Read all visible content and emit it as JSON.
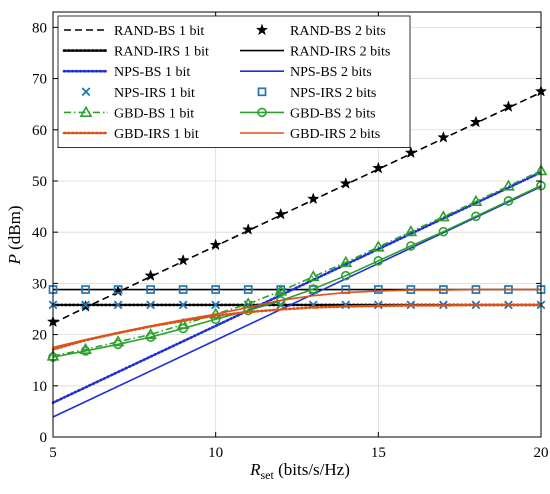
{
  "chart_data": {
    "type": "line",
    "title": "",
    "xlabel_main": "R",
    "xlabel_sub": "set",
    "xlabel_unit": " (bits/s/Hz)",
    "ylabel_main": "P",
    "ylabel_unit": " (dBm)",
    "xlim": [
      5,
      20
    ],
    "ylim": [
      0,
      83
    ],
    "xticks": [
      5,
      10,
      15,
      20
    ],
    "yticks": [
      0,
      10,
      20,
      30,
      40,
      50,
      60,
      70,
      80
    ],
    "grid": true,
    "legend_position": "top-left",
    "legend_columns": 2,
    "series": [
      {
        "name": "RAND-BS 1 bit",
        "color": "#000000",
        "line": "dashed",
        "marker": "none",
        "x": [
          5,
          6,
          7,
          8,
          9,
          10,
          11,
          12,
          13,
          14,
          15,
          16,
          17,
          18,
          19,
          20
        ],
        "y": [
          22.2,
          25.3,
          28.3,
          31.3,
          34.3,
          37.3,
          40.3,
          43.3,
          46.3,
          49.3,
          52.3,
          55.3,
          58.3,
          61.3,
          64.3,
          67.3
        ]
      },
      {
        "name": "RAND-BS 2 bits",
        "color": "#000000",
        "line": "none",
        "marker": "star",
        "x": [
          5,
          6,
          7,
          8,
          9,
          10,
          11,
          12,
          13,
          14,
          15,
          16,
          17,
          18,
          19,
          20
        ],
        "y": [
          22.5,
          25.5,
          28.5,
          31.5,
          34.5,
          37.5,
          40.5,
          43.5,
          46.5,
          49.5,
          52.5,
          55.5,
          58.5,
          61.5,
          64.5,
          67.5
        ]
      },
      {
        "name": "RAND-IRS 1 bit",
        "color": "#000000",
        "line": "dotted",
        "marker": "none",
        "x": [
          5,
          20
        ],
        "y": [
          25.8,
          25.8
        ]
      },
      {
        "name": "RAND-IRS 2 bits",
        "color": "#000000",
        "line": "solid",
        "marker": "none",
        "x": [
          5,
          20
        ],
        "y": [
          28.8,
          28.8
        ]
      },
      {
        "name": "NPS-BS 1 bit",
        "color": "#1f2fd6",
        "line": "dotted",
        "marker": "none",
        "x": [
          5,
          10,
          15,
          20
        ],
        "y": [
          6.7,
          21.7,
          36.7,
          51.7
        ]
      },
      {
        "name": "NPS-BS 2 bits",
        "color": "#1f2fd6",
        "line": "solid",
        "marker": "none",
        "x": [
          5,
          10,
          15,
          20
        ],
        "y": [
          3.9,
          18.9,
          33.9,
          48.9
        ]
      },
      {
        "name": "NPS-IRS 1 bit",
        "color": "#1f77b4",
        "line": "none",
        "marker": "x",
        "x": [
          5,
          6,
          7,
          8,
          9,
          10,
          11,
          12,
          13,
          14,
          15,
          16,
          17,
          18,
          19,
          20
        ],
        "y": [
          25.8,
          25.8,
          25.8,
          25.8,
          25.8,
          25.8,
          25.8,
          25.8,
          25.8,
          25.8,
          25.8,
          25.8,
          25.8,
          25.8,
          25.8,
          25.8
        ]
      },
      {
        "name": "NPS-IRS 2 bits",
        "color": "#1f77b4",
        "line": "none",
        "marker": "square",
        "x": [
          5,
          6,
          7,
          8,
          9,
          10,
          11,
          12,
          13,
          14,
          15,
          16,
          17,
          18,
          19,
          20
        ],
        "y": [
          28.8,
          28.8,
          28.8,
          28.8,
          28.8,
          28.8,
          28.8,
          28.8,
          28.8,
          28.8,
          28.8,
          28.8,
          28.8,
          28.8,
          28.8,
          28.8
        ]
      },
      {
        "name": "GBD-BS 1 bit",
        "color": "#2ca02c",
        "line": "dashdot",
        "marker": "triangle",
        "x": [
          5,
          6,
          7,
          8,
          9,
          10,
          11,
          12,
          13,
          14,
          15,
          16,
          17,
          18,
          19,
          20
        ],
        "y": [
          15.8,
          17.1,
          18.6,
          20.0,
          22.0,
          24.0,
          26.0,
          28.5,
          31.3,
          34.1,
          37.1,
          40.1,
          43.0,
          46.0,
          49.0,
          52.0
        ]
      },
      {
        "name": "GBD-BS 2 bits",
        "color": "#2ca02c",
        "line": "solid",
        "marker": "circle",
        "x": [
          5,
          6,
          7,
          8,
          9,
          10,
          11,
          12,
          13,
          14,
          15,
          16,
          17,
          18,
          19,
          20
        ],
        "y": [
          15.6,
          16.8,
          18.1,
          19.5,
          21.2,
          23.0,
          24.7,
          26.6,
          28.9,
          31.5,
          34.4,
          37.3,
          40.1,
          43.1,
          46.1,
          49.1
        ]
      },
      {
        "name": "GBD-IRS 1 bit",
        "color": "#d95319",
        "line": "dotted",
        "marker": "none",
        "x": [
          5,
          6,
          7,
          8,
          9,
          10,
          11,
          12,
          13,
          14,
          15,
          16,
          17,
          18,
          19,
          20
        ],
        "y": [
          17.1,
          18.9,
          20.3,
          21.6,
          22.7,
          23.7,
          24.4,
          24.9,
          25.3,
          25.5,
          25.6,
          25.7,
          25.7,
          25.8,
          25.8,
          25.8
        ]
      },
      {
        "name": "GBD-IRS 2 bits",
        "color": "#d95319",
        "line": "solid",
        "marker": "none",
        "x": [
          5,
          6,
          7,
          8,
          9,
          10,
          11,
          12,
          13,
          14,
          15,
          16,
          17,
          18,
          19,
          20
        ],
        "y": [
          17.5,
          19.0,
          20.4,
          21.7,
          22.9,
          24.0,
          25.3,
          26.7,
          27.6,
          28.2,
          28.5,
          28.7,
          28.7,
          28.8,
          28.8,
          28.8
        ]
      }
    ]
  }
}
